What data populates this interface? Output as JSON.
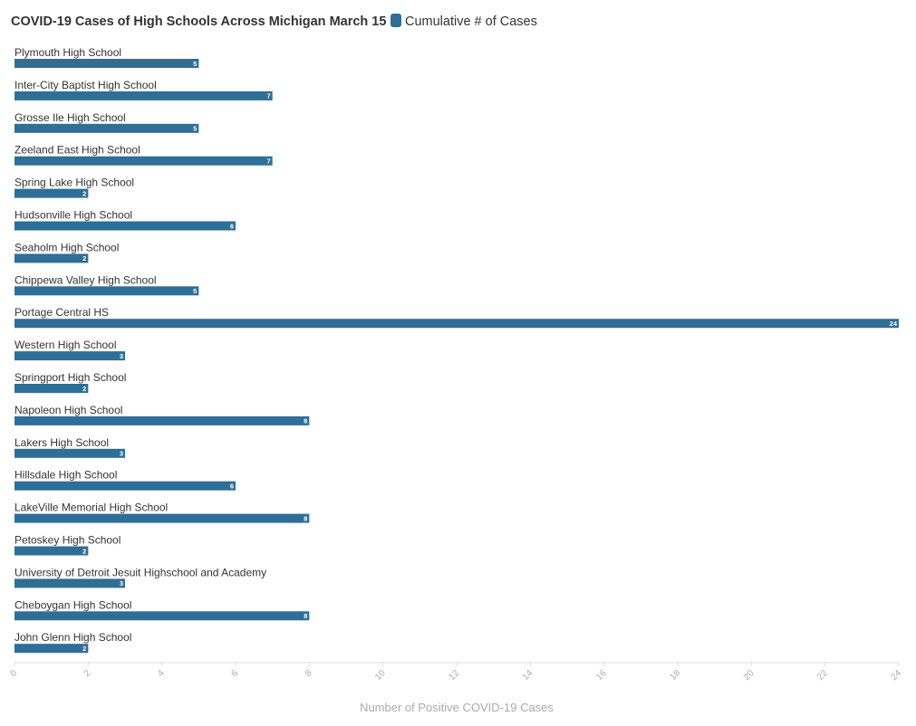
{
  "chart_data": {
    "type": "bar",
    "orientation": "horizontal",
    "title": "COVID-19 Cases of High Schools Across Michigan March 15",
    "xlabel": "Number of Positive COVID-19 Cases",
    "ylabel": "",
    "xlim": [
      0,
      24
    ],
    "xticks": [
      0,
      2,
      4,
      6,
      8,
      10,
      12,
      14,
      16,
      18,
      20,
      22,
      24
    ],
    "grid": false,
    "legend_position": "top",
    "categories": [
      "Plymouth High School",
      "Inter-City Baptist High School",
      "Grosse Ile High School",
      "Zeeland East High School",
      "Spring Lake High School",
      "Hudsonville High School",
      "Seaholm High School",
      "Chippewa Valley High School",
      "Portage Central HS",
      "Western High School",
      "Springport High School",
      "Napoleon High School",
      "Lakers High School",
      "Hillsdale High School",
      "LakeVille Memorial High School",
      "Petoskey High School",
      "University of Detroit Jesuit Highschool and Academy",
      "Cheboygan High School",
      "John Glenn High School"
    ],
    "series": [
      {
        "name": "Cumulative # of Cases",
        "color": "#2e6e97",
        "values": [
          5,
          7,
          5,
          7,
          2,
          6,
          2,
          5,
          24,
          3,
          2,
          8,
          3,
          6,
          8,
          2,
          3,
          8,
          2
        ]
      }
    ]
  }
}
